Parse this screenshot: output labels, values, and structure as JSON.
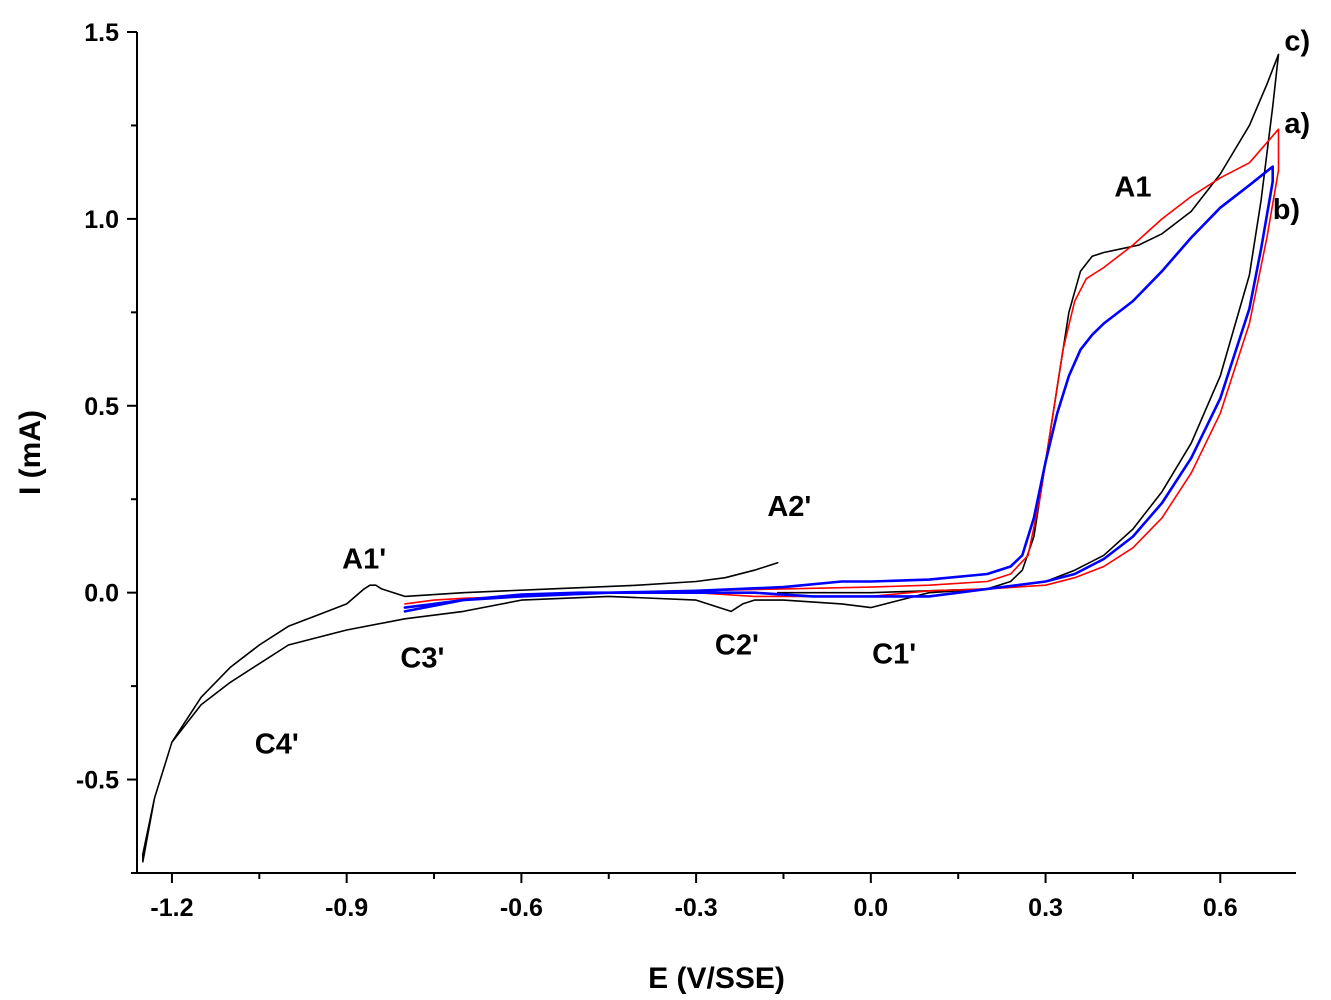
{
  "chart_data": {
    "type": "line",
    "xlabel": "E (V/SSE)",
    "ylabel": "I (mA)",
    "xlim": [
      -1.26,
      0.73
    ],
    "ylim": [
      -0.75,
      1.5
    ],
    "x_ticks": [
      -1.2,
      -0.9,
      -0.6,
      -0.3,
      0.0,
      0.3,
      0.6
    ],
    "x_tick_labels": [
      "-1.2",
      "-0.9",
      "-0.6",
      "-0.3",
      "0.0",
      "0.3",
      "0.6"
    ],
    "y_ticks": [
      -0.5,
      0.0,
      0.5,
      1.0,
      1.5
    ],
    "y_tick_labels": [
      "-0.5",
      "0.0",
      "0.5",
      "1.0",
      "1.5"
    ],
    "grid": false,
    "colors": {
      "a": "#ff0000",
      "b": "#0000ff",
      "c": "#000000",
      "axis": "#000000"
    },
    "series": [
      {
        "name": "a)",
        "color": "#ff0000",
        "x": [
          -0.8,
          -0.75,
          -0.7,
          -0.6,
          -0.45,
          -0.3,
          -0.15,
          0.0,
          0.1,
          0.2,
          0.24,
          0.27,
          0.29,
          0.31,
          0.33,
          0.35,
          0.37,
          0.4,
          0.45,
          0.5,
          0.55,
          0.6,
          0.65,
          0.7,
          0.7,
          0.68,
          0.65,
          0.6,
          0.55,
          0.5,
          0.45,
          0.4,
          0.35,
          0.3,
          0.2,
          0.1,
          0.0,
          -0.1,
          -0.2,
          -0.3,
          -0.5,
          -0.6,
          -0.7,
          -0.8
        ],
        "y": [
          -0.03,
          -0.02,
          -0.015,
          -0.01,
          0.0,
          0.005,
          0.01,
          0.015,
          0.02,
          0.03,
          0.05,
          0.1,
          0.25,
          0.45,
          0.65,
          0.78,
          0.84,
          0.87,
          0.93,
          1.0,
          1.06,
          1.11,
          1.15,
          1.24,
          1.13,
          0.95,
          0.72,
          0.48,
          0.32,
          0.2,
          0.12,
          0.07,
          0.04,
          0.02,
          0.01,
          0.005,
          -0.01,
          -0.01,
          -0.01,
          0.0,
          0.0,
          -0.005,
          -0.02,
          -0.05
        ]
      },
      {
        "name": "b)",
        "color": "#0000ff",
        "x": [
          -0.8,
          -0.75,
          -0.7,
          -0.6,
          -0.45,
          -0.3,
          -0.15,
          -0.05,
          0.0,
          0.1,
          0.2,
          0.24,
          0.26,
          0.28,
          0.3,
          0.32,
          0.34,
          0.36,
          0.38,
          0.4,
          0.45,
          0.5,
          0.55,
          0.6,
          0.65,
          0.69,
          0.69,
          0.67,
          0.65,
          0.6,
          0.55,
          0.5,
          0.45,
          0.4,
          0.35,
          0.3,
          0.2,
          0.1,
          0.0,
          -0.1,
          -0.2,
          -0.3,
          -0.5,
          -0.6,
          -0.7,
          -0.8
        ],
        "y": [
          -0.04,
          -0.03,
          -0.02,
          -0.01,
          0.0,
          0.005,
          0.015,
          0.03,
          0.03,
          0.035,
          0.05,
          0.07,
          0.1,
          0.2,
          0.35,
          0.48,
          0.58,
          0.65,
          0.69,
          0.72,
          0.78,
          0.86,
          0.95,
          1.03,
          1.09,
          1.14,
          1.1,
          0.92,
          0.76,
          0.52,
          0.36,
          0.24,
          0.15,
          0.09,
          0.05,
          0.03,
          0.01,
          -0.01,
          -0.01,
          -0.01,
          0.0,
          0.0,
          0.0,
          -0.005,
          -0.02,
          -0.05
        ]
      },
      {
        "name": "c)",
        "color": "#000000",
        "x": [
          -0.16,
          -0.2,
          -0.25,
          -0.3,
          -0.4,
          -0.55,
          -0.7,
          -0.8,
          -0.84,
          -0.85,
          -0.86,
          -0.87,
          -0.9,
          -0.95,
          -1.0,
          -1.05,
          -1.1,
          -1.15,
          -1.2,
          -1.23,
          -1.25,
          -1.25,
          -1.23,
          -1.2,
          -1.15,
          -1.1,
          -1.05,
          -1.0,
          -0.95,
          -0.9,
          -0.8,
          -0.7,
          -0.6,
          -0.45,
          -0.3,
          -0.26,
          -0.24,
          -0.22,
          -0.2,
          -0.15,
          -0.05,
          0.0,
          0.05,
          0.1,
          0.2,
          0.24,
          0.26,
          0.28,
          0.3,
          0.32,
          0.34,
          0.36,
          0.38,
          0.4,
          0.43,
          0.46,
          0.5,
          0.55,
          0.6,
          0.65,
          0.68,
          0.7,
          0.69,
          0.67,
          0.65,
          0.6,
          0.55,
          0.5,
          0.45,
          0.4,
          0.35,
          0.3,
          0.2,
          0.1,
          0.0,
          -0.1,
          -0.16
        ],
        "y": [
          0.08,
          0.06,
          0.04,
          0.03,
          0.02,
          0.01,
          0.0,
          -0.01,
          0.01,
          0.02,
          0.02,
          0.01,
          -0.03,
          -0.06,
          -0.09,
          -0.14,
          -0.2,
          -0.28,
          -0.4,
          -0.55,
          -0.72,
          -0.7,
          -0.55,
          -0.4,
          -0.3,
          -0.24,
          -0.19,
          -0.14,
          -0.12,
          -0.1,
          -0.07,
          -0.05,
          -0.02,
          -0.01,
          -0.02,
          -0.04,
          -0.05,
          -0.03,
          -0.02,
          -0.02,
          -0.03,
          -0.04,
          -0.02,
          0.0,
          0.01,
          0.03,
          0.06,
          0.15,
          0.35,
          0.55,
          0.75,
          0.86,
          0.9,
          0.91,
          0.92,
          0.93,
          0.96,
          1.02,
          1.12,
          1.25,
          1.36,
          1.44,
          1.3,
          1.05,
          0.85,
          0.58,
          0.4,
          0.27,
          0.17,
          0.1,
          0.06,
          0.03,
          0.01,
          0.005,
          0.0,
          0.0,
          0.0
        ]
      }
    ],
    "annotations": [
      {
        "text": "A1",
        "x": 0.45,
        "y": 1.06
      },
      {
        "text": "A1'",
        "x": -0.87,
        "y": 0.065
      },
      {
        "text": "A2'",
        "x": -0.14,
        "y": 0.205
      },
      {
        "text": "C1'",
        "x": 0.04,
        "y": -0.19
      },
      {
        "text": "C2'",
        "x": -0.23,
        "y": -0.165
      },
      {
        "text": "C3'",
        "x": -0.77,
        "y": -0.2
      },
      {
        "text": "C4'",
        "x": -1.02,
        "y": -0.43
      }
    ],
    "curve_labels": [
      {
        "text": "c)",
        "series": "c)",
        "x": 0.71,
        "y": 1.45
      },
      {
        "text": "a)",
        "series": "a)",
        "x": 0.71,
        "y": 1.23
      },
      {
        "text": "b)",
        "series": "b)",
        "x": 0.69,
        "y": 1.0
      }
    ]
  }
}
